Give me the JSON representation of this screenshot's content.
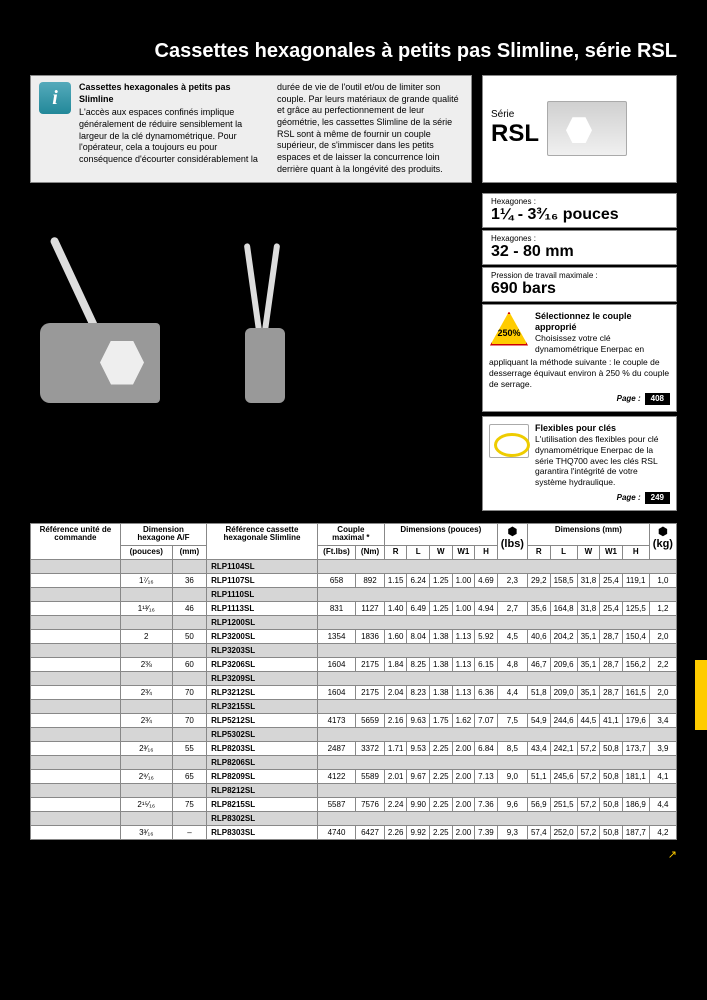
{
  "title": "Cassettes hexagonales à petits pas Slimline, série RSL",
  "info": {
    "heading": "Cassettes hexagonales à petits pas Slimline",
    "body": "L'accès aux espaces confinés implique généralement de réduire sensiblement la largeur de la clé dynamométrique. Pour l'opérateur, cela a toujours eu pour conséquence d'écourter considérablement la durée de vie de l'outil et/ou de limiter son couple. Par leurs matériaux de grande qualité et grâce au perfectionnement de leur géométrie, les cassettes Slimline de la série RSL sont à même de fournir un couple supérieur, de s'immiscer dans les petits espaces et de laisser la concurrence loin derrière quant à la longévité des produits."
  },
  "series": {
    "label": "Série",
    "name": "RSL"
  },
  "specs": [
    {
      "label": "Hexagones :",
      "value": "1¼ - 3³⁄₁₆ pouces"
    },
    {
      "label": "Hexagones :",
      "value": "32 - 80 mm"
    },
    {
      "label": "Pression de travail maximale :",
      "value": "690 bars"
    }
  ],
  "tip1": {
    "badge": "250%",
    "title": "Sélectionnez le couple approprié",
    "body": "Choisissez votre clé dynamométrique Enerpac en appliquant la méthode suivante : le couple de desserrage équivaut environ à 250 % du couple de serrage.",
    "page_label": "Page :",
    "page": "408"
  },
  "tip2": {
    "title": "Flexibles pour clés",
    "body": "L'utilisation des flexibles pour clé dynamométrique Enerpac de la série THQ700 avec les clés RSL garantira l'intégrité de votre système hydraulique.",
    "page_label": "Page :",
    "page": "249"
  },
  "headers": {
    "ref_cmd": "Référence unité de commande",
    "hex_dim": "Dimension hexagone A/F",
    "ref_cass": "Référence cassette hexagonale Slimline",
    "couple": "Couple maximal *",
    "dim_in": "Dimensions (pouces)",
    "dim_mm": "Dimensions (mm)",
    "units": {
      "in": "(pouces)",
      "mm": "(mm)",
      "ftlbs": "(Ft.lbs)",
      "nm": "(Nm)",
      "R": "R",
      "L": "L",
      "W": "W",
      "W1": "W1",
      "H": "H",
      "lbs": "(lbs)",
      "kg": "(kg)"
    }
  },
  "rows": [
    {
      "grey": true,
      "cass": "RLP1104SL"
    },
    {
      "in": "1⁷⁄₁₆",
      "mm": "36",
      "cass": "RLP1107SL",
      "ft": "658",
      "nm": "892",
      "r": "1.15",
      "l": "6.24",
      "w": "1.25",
      "w1": "1.00",
      "h": "4.69",
      "lbs": "2,3",
      "rm": "29,2",
      "lm": "158,5",
      "wm": "31,8",
      "w1m": "25,4",
      "hm": "119,1",
      "kg": "1,0"
    },
    {
      "grey": true,
      "cass": "RLP1110SL"
    },
    {
      "in": "1¹³⁄₁₆",
      "mm": "46",
      "cass": "RLP1113SL",
      "ft": "831",
      "nm": "1127",
      "r": "1.40",
      "l": "6.49",
      "w": "1.25",
      "w1": "1.00",
      "h": "4.94",
      "lbs": "2,7",
      "rm": "35,6",
      "lm": "164,8",
      "wm": "31,8",
      "w1m": "25,4",
      "hm": "125,5",
      "kg": "1,2"
    },
    {
      "grey": true,
      "cass": "RLP1200SL"
    },
    {
      "in": "2",
      "mm": "50",
      "cass": "RLP3200SL",
      "ft": "1354",
      "nm": "1836",
      "r": "1.60",
      "l": "8.04",
      "w": "1.38",
      "w1": "1.13",
      "h": "5.92",
      "lbs": "4,5",
      "rm": "40,6",
      "lm": "204,2",
      "wm": "35,1",
      "w1m": "28,7",
      "hm": "150,4",
      "kg": "2,0"
    },
    {
      "grey": true,
      "cass": "RLP3203SL"
    },
    {
      "in": "2⅜",
      "mm": "60",
      "cass": "RLP3206SL",
      "ft": "1604",
      "nm": "2175",
      "r": "1.84",
      "l": "8.25",
      "w": "1.38",
      "w1": "1.13",
      "h": "6.15",
      "lbs": "4,8",
      "rm": "46,7",
      "lm": "209,6",
      "wm": "35,1",
      "w1m": "28,7",
      "hm": "156,2",
      "kg": "2,2"
    },
    {
      "grey": true,
      "cass": "RLP3209SL"
    },
    {
      "in": "2¾",
      "mm": "70",
      "cass": "RLP3212SL",
      "ft": "1604",
      "nm": "2175",
      "r": "2.04",
      "l": "8.23",
      "w": "1.38",
      "w1": "1.13",
      "h": "6.36",
      "lbs": "4,4",
      "rm": "51,8",
      "lm": "209,0",
      "wm": "35,1",
      "w1m": "28,7",
      "hm": "161,5",
      "kg": "2,0"
    },
    {
      "grey": true,
      "cass": "RLP3215SL"
    },
    {
      "in": "2¾",
      "mm": "70",
      "cass": "RLP5212SL",
      "ft": "4173",
      "nm": "5659",
      "r": "2.16",
      "l": "9.63",
      "w": "1.75",
      "w1": "1.62",
      "h": "7.07",
      "lbs": "7,5",
      "rm": "54,9",
      "lm": "244,6",
      "wm": "44,5",
      "w1m": "41,1",
      "hm": "179,6",
      "kg": "3,4"
    },
    {
      "grey": true,
      "cass": "RLP5302SL"
    },
    {
      "in": "2³⁄₁₆",
      "mm": "55",
      "cass": "RLP8203SL",
      "ft": "2487",
      "nm": "3372",
      "r": "1.71",
      "l": "9.53",
      "w": "2.25",
      "w1": "2.00",
      "h": "6.84",
      "lbs": "8,5",
      "rm": "43,4",
      "lm": "242,1",
      "wm": "57,2",
      "w1m": "50,8",
      "hm": "173,7",
      "kg": "3,9"
    },
    {
      "grey": true,
      "cass": "RLP8206SL"
    },
    {
      "in": "2⁹⁄₁₆",
      "mm": "65",
      "cass": "RLP8209SL",
      "ft": "4122",
      "nm": "5589",
      "r": "2.01",
      "l": "9.67",
      "w": "2.25",
      "w1": "2.00",
      "h": "7.13",
      "lbs": "9,0",
      "rm": "51,1",
      "lm": "245,6",
      "wm": "57,2",
      "w1m": "50,8",
      "hm": "181,1",
      "kg": "4,1"
    },
    {
      "grey": true,
      "cass": "RLP8212SL"
    },
    {
      "in": "2¹⁵⁄₁₆",
      "mm": "75",
      "cass": "RLP8215SL",
      "ft": "5587",
      "nm": "7576",
      "r": "2.24",
      "l": "9.90",
      "w": "2.25",
      "w1": "2.00",
      "h": "7.36",
      "lbs": "9,6",
      "rm": "56,9",
      "lm": "251,5",
      "wm": "57,2",
      "w1m": "50,8",
      "hm": "186,9",
      "kg": "4,4"
    },
    {
      "grey": true,
      "cass": "RLP8302SL"
    },
    {
      "in": "3³⁄₁₆",
      "mm": "–",
      "cass": "RLP8303SL",
      "ft": "4740",
      "nm": "6427",
      "r": "2.26",
      "l": "9.92",
      "w": "2.25",
      "w1": "2.00",
      "h": "7.39",
      "lbs": "9,3",
      "rm": "57,4",
      "lm": "252,0",
      "wm": "57,2",
      "w1m": "50,8",
      "hm": "187,7",
      "kg": "4,2"
    }
  ]
}
